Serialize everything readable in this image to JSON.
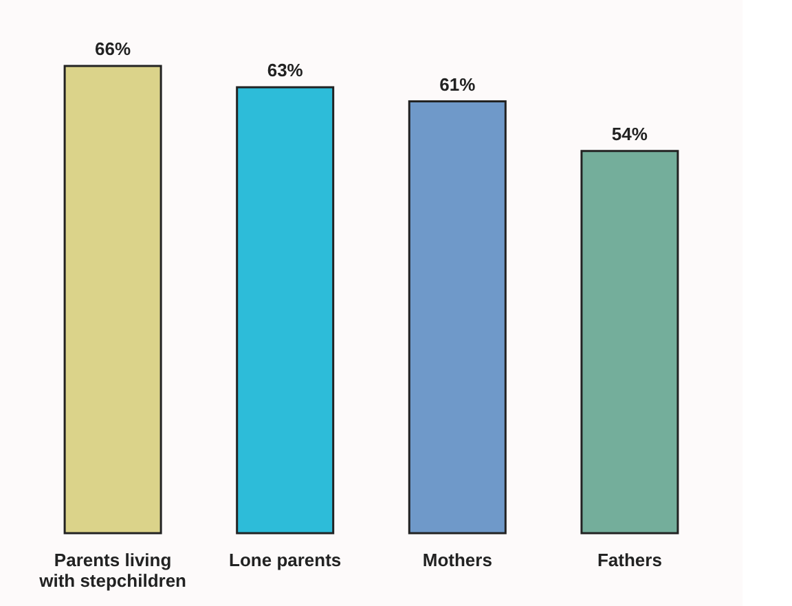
{
  "chart_data": {
    "type": "bar",
    "categories": [
      "Parents living with stepchildren",
      "Lone parents",
      "Mothers",
      "Fathers"
    ],
    "values": [
      66,
      63,
      61,
      54
    ],
    "colors": [
      "#dbd38a",
      "#2dbcd9",
      "#6f99c9",
      "#74ae9b"
    ],
    "value_labels": [
      "66%",
      "63%",
      "61%",
      "54%"
    ]
  }
}
